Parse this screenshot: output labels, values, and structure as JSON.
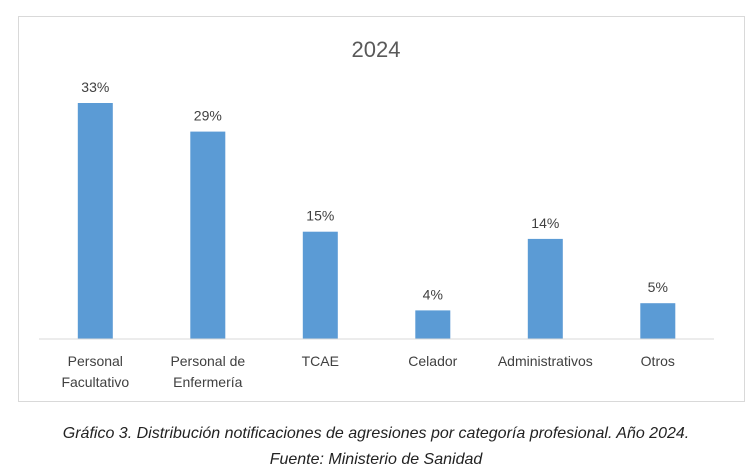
{
  "chart_data": {
    "type": "bar",
    "title": "2024",
    "categories": [
      [
        "Personal",
        "Facultativo"
      ],
      [
        "Personal de",
        "Enfermería"
      ],
      [
        "TCAE"
      ],
      [
        "Celador"
      ],
      [
        "Administrativos"
      ],
      [
        "Otros"
      ]
    ],
    "values": [
      33,
      29,
      15,
      4,
      14,
      5
    ],
    "value_labels": [
      "33%",
      "29%",
      "15%",
      "4%",
      "14%",
      "5%"
    ],
    "unit": "%",
    "ylim": [
      0,
      35
    ],
    "grid": false,
    "legend": "none",
    "bar_color": "#5b9bd5"
  },
  "caption": {
    "line1": "Gráfico 3. Distribución notificaciones de agresiones por categoría profesional. Año 2024.",
    "line2": "Fuente: Ministerio de Sanidad"
  }
}
